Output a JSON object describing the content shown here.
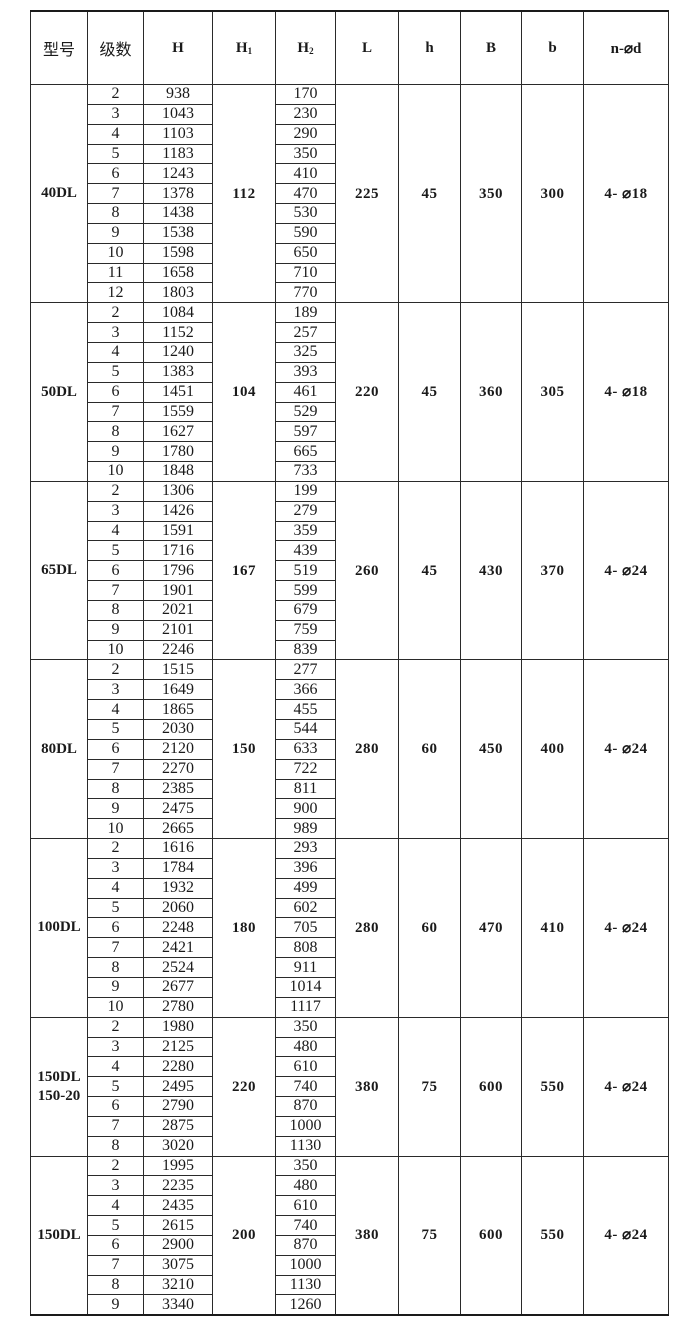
{
  "headers": [
    "型号",
    "级数",
    "H",
    "H1",
    "H2",
    "L",
    "h",
    "B",
    "b",
    "n-⌀d"
  ],
  "groups": [
    {
      "model": "40DL",
      "H1": "112",
      "L": "225",
      "h": "45",
      "B": "350",
      "b": "300",
      "nd": "4- ⌀18",
      "rows": [
        [
          "2",
          "938",
          "170"
        ],
        [
          "3",
          "1043",
          "230"
        ],
        [
          "4",
          "1103",
          "290"
        ],
        [
          "5",
          "1183",
          "350"
        ],
        [
          "6",
          "1243",
          "410"
        ],
        [
          "7",
          "1378",
          "470"
        ],
        [
          "8",
          "1438",
          "530"
        ],
        [
          "9",
          "1538",
          "590"
        ],
        [
          "10",
          "1598",
          "650"
        ],
        [
          "11",
          "1658",
          "710"
        ],
        [
          "12",
          "1803",
          "770"
        ]
      ]
    },
    {
      "model": "50DL",
      "H1": "104",
      "L": "220",
      "h": "45",
      "B": "360",
      "b": "305",
      "nd": "4- ⌀18",
      "rows": [
        [
          "2",
          "1084",
          "189"
        ],
        [
          "3",
          "1152",
          "257"
        ],
        [
          "4",
          "1240",
          "325"
        ],
        [
          "5",
          "1383",
          "393"
        ],
        [
          "6",
          "1451",
          "461"
        ],
        [
          "7",
          "1559",
          "529"
        ],
        [
          "8",
          "1627",
          "597"
        ],
        [
          "9",
          "1780",
          "665"
        ],
        [
          "10",
          "1848",
          "733"
        ]
      ]
    },
    {
      "model": "65DL",
      "H1": "167",
      "L": "260",
      "h": "45",
      "B": "430",
      "b": "370",
      "nd": "4- ⌀24",
      "rows": [
        [
          "2",
          "1306",
          "199"
        ],
        [
          "3",
          "1426",
          "279"
        ],
        [
          "4",
          "1591",
          "359"
        ],
        [
          "5",
          "1716",
          "439"
        ],
        [
          "6",
          "1796",
          "519"
        ],
        [
          "7",
          "1901",
          "599"
        ],
        [
          "8",
          "2021",
          "679"
        ],
        [
          "9",
          "2101",
          "759"
        ],
        [
          "10",
          "2246",
          "839"
        ]
      ]
    },
    {
      "model": "80DL",
      "H1": "150",
      "L": "280",
      "h": "60",
      "B": "450",
      "b": "400",
      "nd": "4- ⌀24",
      "rows": [
        [
          "2",
          "1515",
          "277"
        ],
        [
          "3",
          "1649",
          "366"
        ],
        [
          "4",
          "1865",
          "455"
        ],
        [
          "5",
          "2030",
          "544"
        ],
        [
          "6",
          "2120",
          "633"
        ],
        [
          "7",
          "2270",
          "722"
        ],
        [
          "8",
          "2385",
          "811"
        ],
        [
          "9",
          "2475",
          "900"
        ],
        [
          "10",
          "2665",
          "989"
        ]
      ]
    },
    {
      "model": "100DL",
      "H1": "180",
      "L": "280",
      "h": "60",
      "B": "470",
      "b": "410",
      "nd": "4- ⌀24",
      "rows": [
        [
          "2",
          "1616",
          "293"
        ],
        [
          "3",
          "1784",
          "396"
        ],
        [
          "4",
          "1932",
          "499"
        ],
        [
          "5",
          "2060",
          "602"
        ],
        [
          "6",
          "2248",
          "705"
        ],
        [
          "7",
          "2421",
          "808"
        ],
        [
          "8",
          "2524",
          "911"
        ],
        [
          "9",
          "2677",
          "1014"
        ],
        [
          "10",
          "2780",
          "1117"
        ]
      ]
    },
    {
      "model": "150DL\n150-20",
      "H1": "220",
      "L": "380",
      "h": "75",
      "B": "600",
      "b": "550",
      "nd": "4- ⌀24",
      "rows": [
        [
          "2",
          "1980",
          "350"
        ],
        [
          "3",
          "2125",
          "480"
        ],
        [
          "4",
          "2280",
          "610"
        ],
        [
          "5",
          "2495",
          "740"
        ],
        [
          "6",
          "2790",
          "870"
        ],
        [
          "7",
          "2875",
          "1000"
        ],
        [
          "8",
          "3020",
          "1130"
        ]
      ]
    },
    {
      "model": "150DL",
      "H1": "200",
      "L": "380",
      "h": "75",
      "B": "600",
      "b": "550",
      "nd": "4- ⌀24",
      "rows": [
        [
          "2",
          "1995",
          "350"
        ],
        [
          "3",
          "2235",
          "480"
        ],
        [
          "4",
          "2435",
          "610"
        ],
        [
          "5",
          "2615",
          "740"
        ],
        [
          "6",
          "2900",
          "870"
        ],
        [
          "7",
          "3075",
          "1000"
        ],
        [
          "8",
          "3210",
          "1130"
        ],
        [
          "9",
          "3340",
          "1260"
        ]
      ]
    }
  ]
}
